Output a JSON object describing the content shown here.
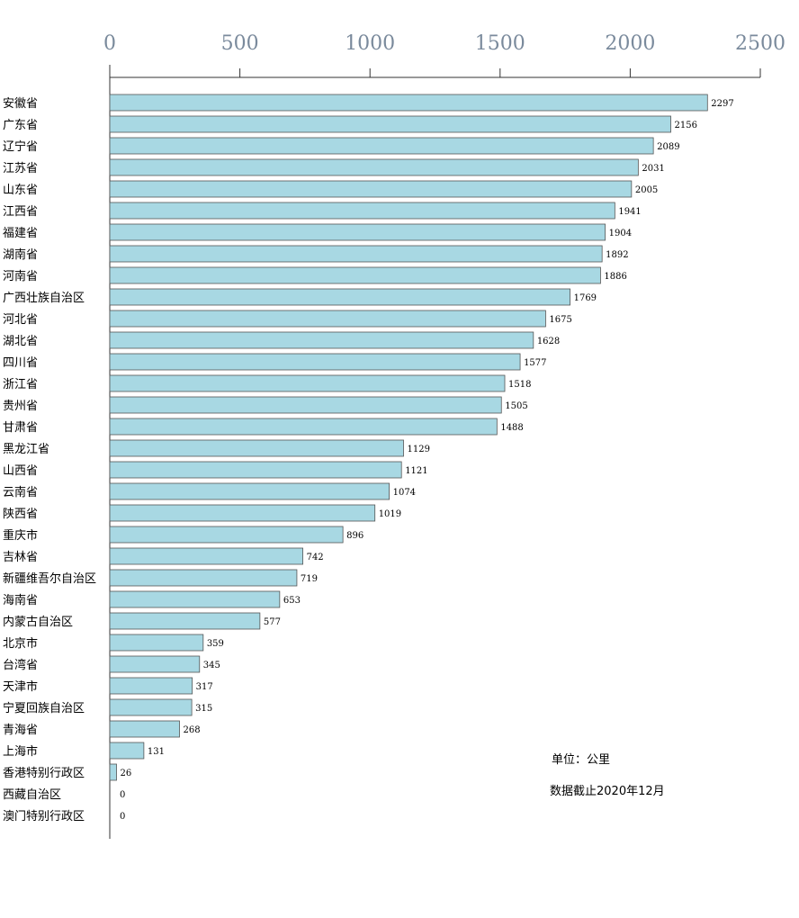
{
  "chart_data": {
    "type": "bar",
    "orientation": "horizontal",
    "xlim": [
      0,
      2500
    ],
    "ticks": [
      0,
      500,
      1000,
      1500,
      2000,
      2500
    ],
    "bar_color": "#a8d8e3",
    "bar_stroke": "#555555",
    "categories": [
      "安徽省",
      "广东省",
      "辽宁省",
      "江苏省",
      "山东省",
      "江西省",
      "福建省",
      "湖南省",
      "河南省",
      "广西壮族自治区",
      "河北省",
      "湖北省",
      "四川省",
      "浙江省",
      "贵州省",
      "甘肃省",
      "黑龙江省",
      "山西省",
      "云南省",
      "陕西省",
      "重庆市",
      "吉林省",
      "新疆维吾尔自治区",
      "海南省",
      "内蒙古自治区",
      "北京市",
      "台湾省",
      "天津市",
      "宁夏回族自治区",
      "青海省",
      "上海市",
      "香港特别行政区",
      "西藏自治区",
      "澳门特别行政区"
    ],
    "values": [
      2297,
      2156,
      2089,
      2031,
      2005,
      1941,
      1904,
      1892,
      1886,
      1769,
      1675,
      1628,
      1577,
      1518,
      1505,
      1488,
      1129,
      1121,
      1074,
      1019,
      896,
      742,
      719,
      653,
      577,
      359,
      345,
      317,
      315,
      268,
      131,
      26,
      0,
      0
    ]
  },
  "notes": {
    "unit": "单位：公里",
    "date": "数据截止2020年12月"
  }
}
